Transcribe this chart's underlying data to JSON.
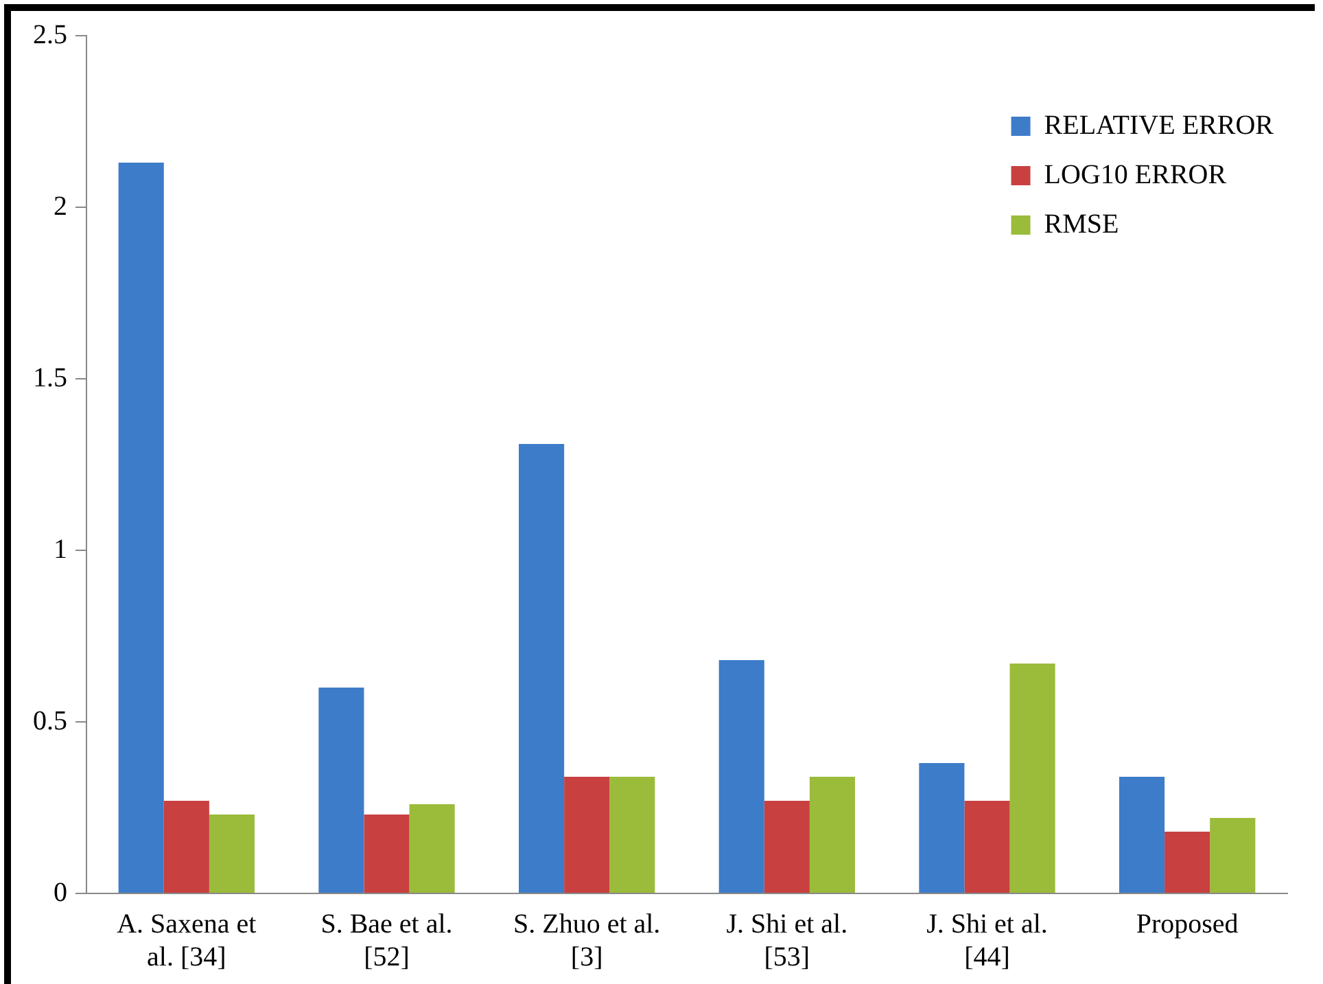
{
  "chart_data": {
    "type": "bar",
    "categories": [
      "A. Saxena et al. [34]",
      "S. Bae et al. [52]",
      "S. Zhuo et al. [3]",
      "J. Shi et al. [53]",
      "J. Shi et al. [44]",
      "Proposed"
    ],
    "series": [
      {
        "name": "RELATIVE ERROR",
        "color": "#3d7cc9",
        "values": [
          2.13,
          0.6,
          1.31,
          0.68,
          0.38,
          0.34
        ]
      },
      {
        "name": "LOG10 ERROR",
        "color": "#c94040",
        "values": [
          0.27,
          0.23,
          0.34,
          0.27,
          0.27,
          0.18
        ]
      },
      {
        "name": "RMSE",
        "color": "#9bbb3a",
        "values": [
          0.23,
          0.26,
          0.34,
          0.34,
          0.67,
          0.22
        ]
      }
    ],
    "ylim": [
      0,
      2.5
    ],
    "yticks": [
      0,
      0.5,
      1,
      1.5,
      2,
      2.5
    ],
    "grid": false,
    "legend": "top right"
  }
}
